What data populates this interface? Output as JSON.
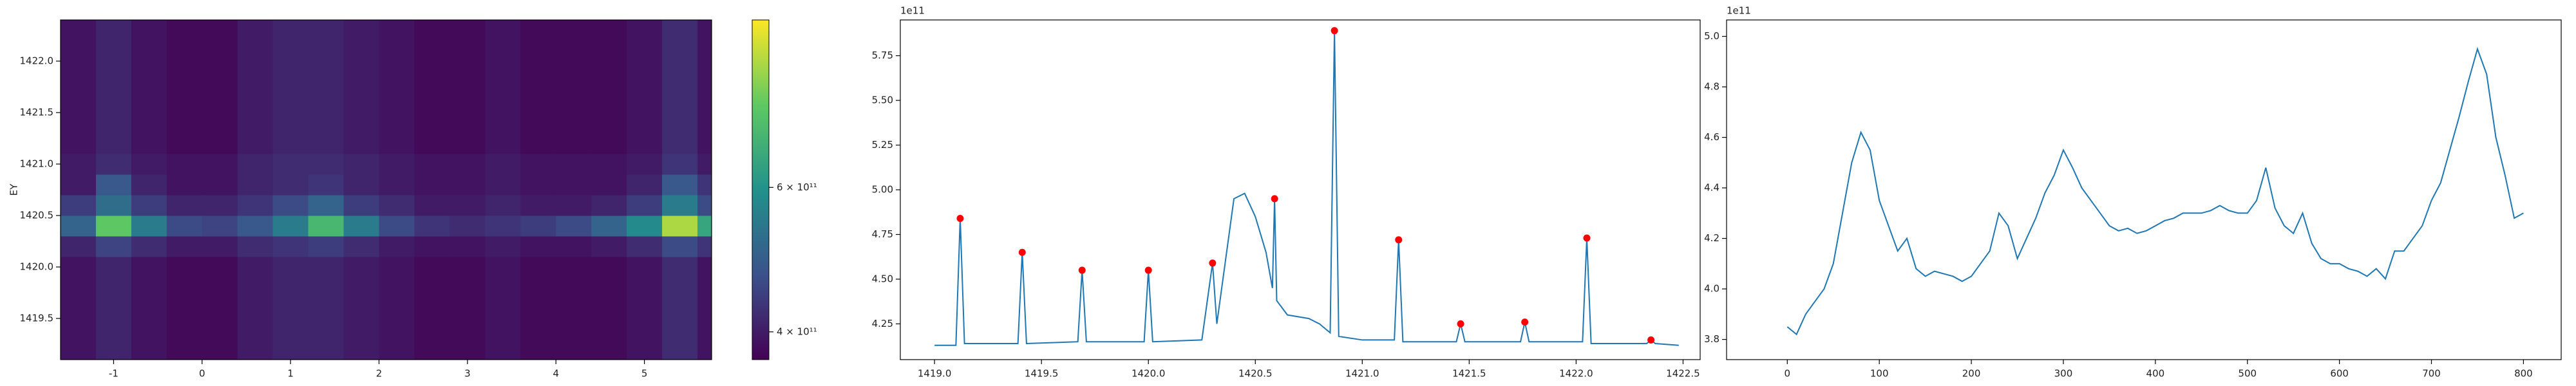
{
  "chart_data": [
    {
      "type": "heatmap",
      "ylabel": "EY",
      "x": [
        -1.4,
        -1.0,
        -0.6,
        -0.2,
        0.2,
        0.6,
        1.0,
        1.4,
        1.8,
        2.2,
        2.6,
        3.0,
        3.4,
        3.8,
        4.2,
        4.6,
        5.0,
        5.4,
        5.8
      ],
      "y": [
        1419.2,
        1419.4,
        1419.6,
        1419.8,
        1420.0,
        1420.2,
        1420.4,
        1420.6,
        1420.8,
        1421.0,
        1421.2,
        1421.4,
        1421.6,
        1421.8,
        1422.0,
        1422.2,
        1422.4
      ],
      "z": [
        [
          390000000000.0,
          410000000000.0,
          390000000000.0,
          380000000000.0,
          380000000000.0,
          400000000000.0,
          410000000000.0,
          410000000000.0,
          400000000000.0,
          390000000000.0,
          380000000000.0,
          380000000000.0,
          390000000000.0,
          380000000000.0,
          380000000000.0,
          380000000000.0,
          390000000000.0,
          420000000000.0,
          390000000000.0
        ],
        [
          390000000000.0,
          410000000000.0,
          390000000000.0,
          380000000000.0,
          380000000000.0,
          400000000000.0,
          410000000000.0,
          410000000000.0,
          400000000000.0,
          390000000000.0,
          380000000000.0,
          380000000000.0,
          390000000000.0,
          380000000000.0,
          380000000000.0,
          380000000000.0,
          390000000000.0,
          420000000000.0,
          390000000000.0
        ],
        [
          390000000000.0,
          410000000000.0,
          390000000000.0,
          380000000000.0,
          380000000000.0,
          400000000000.0,
          410000000000.0,
          410000000000.0,
          400000000000.0,
          390000000000.0,
          380000000000.0,
          380000000000.0,
          390000000000.0,
          380000000000.0,
          380000000000.0,
          380000000000.0,
          390000000000.0,
          420000000000.0,
          390000000000.0
        ],
        [
          390000000000.0,
          410000000000.0,
          390000000000.0,
          380000000000.0,
          380000000000.0,
          400000000000.0,
          410000000000.0,
          410000000000.0,
          400000000000.0,
          390000000000.0,
          380000000000.0,
          380000000000.0,
          390000000000.0,
          380000000000.0,
          380000000000.0,
          380000000000.0,
          390000000000.0,
          420000000000.0,
          390000000000.0
        ],
        [
          390000000000.0,
          410000000000.0,
          390000000000.0,
          380000000000.0,
          380000000000.0,
          400000000000.0,
          410000000000.0,
          410000000000.0,
          400000000000.0,
          390000000000.0,
          380000000000.0,
          380000000000.0,
          390000000000.0,
          380000000000.0,
          380000000000.0,
          380000000000.0,
          390000000000.0,
          420000000000.0,
          390000000000.0
        ],
        [
          410000000000.0,
          450000000000.0,
          420000000000.0,
          400000000000.0,
          400000000000.0,
          420000000000.0,
          430000000000.0,
          440000000000.0,
          420000000000.0,
          400000000000.0,
          390000000000.0,
          390000000000.0,
          400000000000.0,
          390000000000.0,
          390000000000.0,
          400000000000.0,
          420000000000.0,
          460000000000.0,
          430000000000.0
        ],
        [
          500000000000.0,
          750000000000.0,
          550000000000.0,
          460000000000.0,
          450000000000.0,
          480000000000.0,
          550000000000.0,
          700000000000.0,
          550000000000.0,
          460000000000.0,
          430000000000.0,
          420000000000.0,
          430000000000.0,
          440000000000.0,
          460000000000.0,
          500000000000.0,
          580000000000.0,
          850000000000.0,
          650000000000.0
        ],
        [
          440000000000.0,
          520000000000.0,
          440000000000.0,
          410000000000.0,
          410000000000.0,
          430000000000.0,
          460000000000.0,
          500000000000.0,
          440000000000.0,
          420000000000.0,
          400000000000.0,
          400000000000.0,
          410000000000.0,
          400000000000.0,
          400000000000.0,
          410000000000.0,
          440000000000.0,
          550000000000.0,
          460000000000.0
        ],
        [
          400000000000.0,
          480000000000.0,
          410000000000.0,
          390000000000.0,
          390000000000.0,
          410000000000.0,
          420000000000.0,
          430000000000.0,
          410000000000.0,
          400000000000.0,
          390000000000.0,
          390000000000.0,
          400000000000.0,
          390000000000.0,
          390000000000.0,
          390000000000.0,
          410000000000.0,
          480000000000.0,
          430000000000.0
        ],
        [
          400000000000.0,
          420000000000.0,
          400000000000.0,
          390000000000.0,
          390000000000.0,
          410000000000.0,
          420000000000.0,
          420000000000.0,
          410000000000.0,
          400000000000.0,
          390000000000.0,
          390000000000.0,
          400000000000.0,
          390000000000.0,
          390000000000.0,
          390000000000.0,
          400000000000.0,
          430000000000.0,
          400000000000.0
        ],
        [
          390000000000.0,
          410000000000.0,
          390000000000.0,
          380000000000.0,
          380000000000.0,
          400000000000.0,
          410000000000.0,
          410000000000.0,
          400000000000.0,
          390000000000.0,
          380000000000.0,
          380000000000.0,
          390000000000.0,
          380000000000.0,
          380000000000.0,
          380000000000.0,
          390000000000.0,
          420000000000.0,
          390000000000.0
        ],
        [
          390000000000.0,
          410000000000.0,
          390000000000.0,
          380000000000.0,
          380000000000.0,
          400000000000.0,
          410000000000.0,
          410000000000.0,
          400000000000.0,
          390000000000.0,
          380000000000.0,
          380000000000.0,
          390000000000.0,
          380000000000.0,
          380000000000.0,
          380000000000.0,
          390000000000.0,
          420000000000.0,
          390000000000.0
        ],
        [
          390000000000.0,
          410000000000.0,
          390000000000.0,
          380000000000.0,
          380000000000.0,
          400000000000.0,
          410000000000.0,
          410000000000.0,
          400000000000.0,
          390000000000.0,
          380000000000.0,
          380000000000.0,
          390000000000.0,
          380000000000.0,
          380000000000.0,
          380000000000.0,
          390000000000.0,
          420000000000.0,
          390000000000.0
        ],
        [
          390000000000.0,
          410000000000.0,
          390000000000.0,
          380000000000.0,
          380000000000.0,
          400000000000.0,
          410000000000.0,
          410000000000.0,
          400000000000.0,
          390000000000.0,
          380000000000.0,
          380000000000.0,
          390000000000.0,
          380000000000.0,
          380000000000.0,
          380000000000.0,
          390000000000.0,
          420000000000.0,
          390000000000.0
        ],
        [
          390000000000.0,
          410000000000.0,
          390000000000.0,
          380000000000.0,
          380000000000.0,
          400000000000.0,
          410000000000.0,
          410000000000.0,
          400000000000.0,
          390000000000.0,
          380000000000.0,
          380000000000.0,
          390000000000.0,
          380000000000.0,
          380000000000.0,
          380000000000.0,
          390000000000.0,
          420000000000.0,
          390000000000.0
        ],
        [
          390000000000.0,
          410000000000.0,
          390000000000.0,
          380000000000.0,
          380000000000.0,
          400000000000.0,
          410000000000.0,
          410000000000.0,
          400000000000.0,
          390000000000.0,
          380000000000.0,
          380000000000.0,
          390000000000.0,
          380000000000.0,
          380000000000.0,
          380000000000.0,
          390000000000.0,
          420000000000.0,
          390000000000.0
        ],
        [
          390000000000.0,
          410000000000.0,
          390000000000.0,
          380000000000.0,
          380000000000.0,
          400000000000.0,
          410000000000.0,
          410000000000.0,
          400000000000.0,
          390000000000.0,
          380000000000.0,
          380000000000.0,
          390000000000.0,
          380000000000.0,
          380000000000.0,
          380000000000.0,
          390000000000.0,
          420000000000.0,
          390000000000.0
        ]
      ],
      "colormap": "viridis",
      "color_scale": "log",
      "clim": [
        370000000000.0,
        960000000000.0
      ],
      "colorbar_ticks": [
        {
          "value": 400000000000.0,
          "label": "4 × 10¹¹"
        },
        {
          "value": 600000000000.0,
          "label": "6 × 10¹¹"
        }
      ],
      "xlim": [
        -1.6,
        5.76
      ],
      "xticks": [
        -1,
        0,
        1,
        2,
        3,
        4,
        5
      ],
      "ylim": [
        1419.1,
        1422.4
      ],
      "yticks": [
        1419.5,
        {
          "value": 1420,
          "label": "1420.0"
        },
        1420.5,
        {
          "value": 1421,
          "label": "1421.0"
        },
        1421.5,
        {
          "value": 1422,
          "label": "1422.0"
        }
      ]
    },
    {
      "type": "line",
      "offset_label": "1e11",
      "series": [
        {
          "color": "#1f77b4",
          "x": [
            1419.0,
            1419.1,
            1419.12,
            1419.14,
            1419.39,
            1419.41,
            1419.43,
            1419.67,
            1419.69,
            1419.71,
            1419.98,
            1420.0,
            1420.02,
            1420.25,
            1420.3,
            1420.32,
            1420.36,
            1420.4,
            1420.45,
            1420.5,
            1420.55,
            1420.58,
            1420.59,
            1420.6,
            1420.65,
            1420.75,
            1420.8,
            1420.85,
            1420.87,
            1420.89,
            1421.0,
            1421.15,
            1421.17,
            1421.19,
            1421.44,
            1421.46,
            1421.48,
            1421.74,
            1421.76,
            1421.78,
            1422.03,
            1422.05,
            1422.07,
            1422.33,
            1422.35,
            1422.37,
            1422.48
          ],
          "values": [
            4.13,
            4.13,
            4.84,
            4.14,
            4.14,
            4.65,
            4.14,
            4.15,
            4.55,
            4.15,
            4.15,
            4.55,
            4.15,
            4.16,
            4.59,
            4.25,
            4.6,
            4.95,
            4.98,
            4.85,
            4.65,
            4.45,
            4.95,
            4.38,
            4.3,
            4.28,
            4.25,
            4.2,
            5.89,
            4.18,
            4.16,
            4.16,
            4.72,
            4.15,
            4.15,
            4.25,
            4.15,
            4.15,
            4.26,
            4.15,
            4.15,
            4.73,
            4.14,
            4.14,
            4.16,
            4.14,
            4.13
          ]
        },
        {
          "color": "#ff0000",
          "marker": "o",
          "x": [
            1419.12,
            1419.41,
            1419.69,
            1420.0,
            1420.3,
            1420.59,
            1420.87,
            1421.17,
            1421.46,
            1421.76,
            1422.05,
            1422.35
          ],
          "values": [
            4.84,
            4.65,
            4.55,
            4.55,
            4.59,
            4.95,
            5.89,
            4.72,
            4.25,
            4.26,
            4.73,
            4.16
          ]
        }
      ],
      "xlim": [
        1418.84,
        1422.58
      ],
      "xticks": [
        {
          "value": 1419,
          "label": "1419.0"
        },
        1419.5,
        {
          "value": 1420,
          "label": "1420.0"
        },
        1420.5,
        {
          "value": 1421,
          "label": "1421.0"
        },
        1421.5,
        {
          "value": 1422,
          "label": "1422.0"
        },
        1422.5
      ],
      "ylim": [
        4.05,
        5.95
      ],
      "yticks": [
        4.25,
        {
          "value": 4.5,
          "label": "4.50"
        },
        4.75,
        {
          "value": 5,
          "label": "5.00"
        },
        5.25,
        {
          "value": 5.5,
          "label": "5.50"
        },
        5.75
      ]
    },
    {
      "type": "line",
      "offset_label": "1e11",
      "series": [
        {
          "color": "#1f77b4",
          "x": [
            0,
            10,
            20,
            30,
            40,
            50,
            60,
            70,
            80,
            90,
            100,
            110,
            120,
            130,
            140,
            150,
            160,
            170,
            180,
            190,
            200,
            210,
            220,
            230,
            240,
            250,
            260,
            270,
            280,
            290,
            300,
            310,
            320,
            330,
            340,
            350,
            360,
            370,
            380,
            390,
            400,
            410,
            420,
            430,
            440,
            450,
            460,
            470,
            480,
            490,
            500,
            510,
            520,
            530,
            540,
            550,
            560,
            570,
            580,
            590,
            600,
            610,
            620,
            630,
            640,
            650,
            660,
            670,
            680,
            690,
            700,
            710,
            720,
            730,
            740,
            750,
            760,
            770,
            780,
            790,
            800
          ],
          "values": [
            3.85,
            3.82,
            3.9,
            3.95,
            4.0,
            4.1,
            4.3,
            4.5,
            4.62,
            4.55,
            4.35,
            4.25,
            4.15,
            4.2,
            4.08,
            4.05,
            4.07,
            4.06,
            4.05,
            4.03,
            4.05,
            4.1,
            4.15,
            4.3,
            4.25,
            4.12,
            4.2,
            4.28,
            4.38,
            4.45,
            4.55,
            4.48,
            4.4,
            4.35,
            4.3,
            4.25,
            4.23,
            4.24,
            4.22,
            4.23,
            4.25,
            4.27,
            4.28,
            4.3,
            4.3,
            4.3,
            4.31,
            4.33,
            4.31,
            4.3,
            4.3,
            4.35,
            4.48,
            4.32,
            4.25,
            4.22,
            4.3,
            4.18,
            4.12,
            4.1,
            4.1,
            4.08,
            4.07,
            4.05,
            4.08,
            4.04,
            4.15,
            4.15,
            4.2,
            4.25,
            4.35,
            4.42,
            4.55,
            4.68,
            4.82,
            4.95,
            4.85,
            4.6,
            4.45,
            4.28,
            4.3
          ]
        }
      ],
      "xlim": [
        -66,
        841
      ],
      "xticks": [
        0,
        100,
        200,
        300,
        400,
        500,
        600,
        700,
        800
      ],
      "ylim": [
        3.72,
        5.065
      ],
      "yticks": [
        3.8,
        {
          "value": 4,
          "label": "4.0"
        },
        4.2,
        4.4,
        4.6,
        4.8,
        {
          "value": 5,
          "label": "5.0"
        }
      ]
    }
  ]
}
